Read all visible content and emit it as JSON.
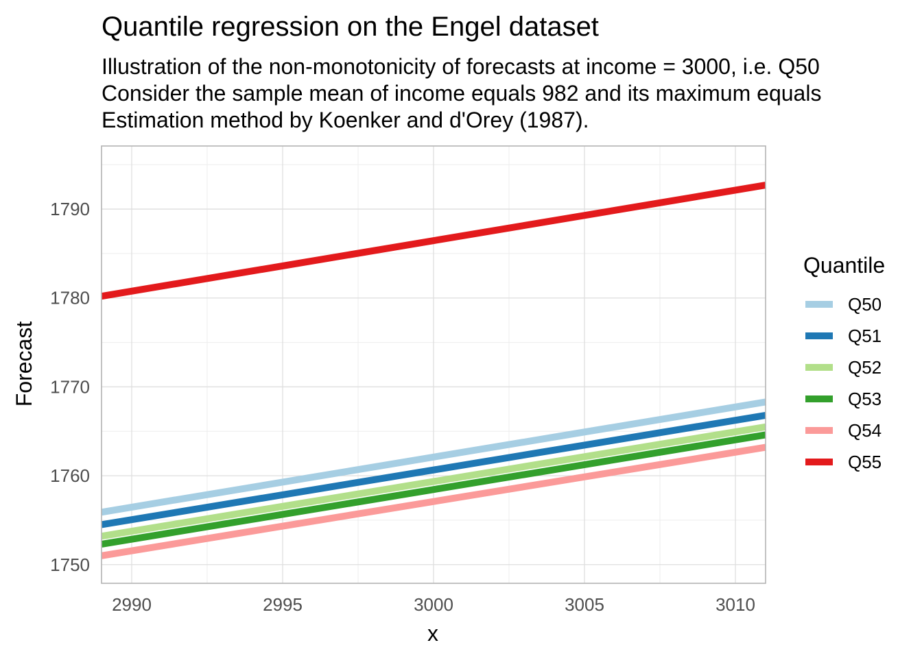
{
  "chart_data": {
    "type": "line",
    "title": "Quantile regression on the Engel dataset",
    "subtitle": [
      "Illustration of the non-monotonicity of forecasts at income = 3000, i.e. Q50",
      "Consider the sample mean of income equals 982 and its maximum equals",
      "Estimation method by Koenker and d'Orey (1987)."
    ],
    "xlabel": "x",
    "ylabel": "Forecast",
    "xlim": [
      2989,
      3011
    ],
    "ylim": [
      1747.9,
      1797.1
    ],
    "x_ticks": [
      2990,
      2995,
      3000,
      3005,
      3010
    ],
    "y_ticks": [
      1750,
      1760,
      1770,
      1780,
      1790
    ],
    "grid": true,
    "legend": {
      "title": "Quantile",
      "placement": "right"
    },
    "x": [
      2989,
      3011
    ],
    "series": [
      {
        "name": "Q50",
        "color": "#A6CEE3",
        "values": [
          1755.9,
          1768.3
        ]
      },
      {
        "name": "Q51",
        "color": "#1F78B4",
        "values": [
          1754.5,
          1766.8
        ]
      },
      {
        "name": "Q52",
        "color": "#B2DF8A",
        "values": [
          1753.2,
          1765.5
        ]
      },
      {
        "name": "Q53",
        "color": "#33A02C",
        "values": [
          1752.3,
          1764.6
        ]
      },
      {
        "name": "Q54",
        "color": "#FB9A99",
        "values": [
          1751.0,
          1763.2
        ]
      },
      {
        "name": "Q55",
        "color": "#E31A1C",
        "values": [
          1780.2,
          1792.7
        ]
      }
    ]
  }
}
